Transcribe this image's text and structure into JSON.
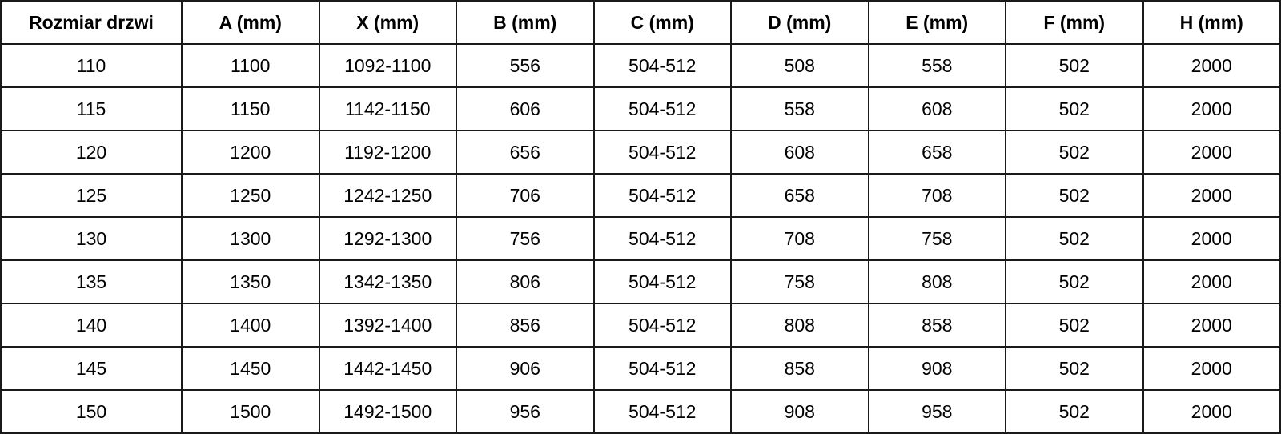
{
  "table": {
    "headers": [
      "Rozmiar drzwi",
      "A (mm)",
      "X (mm)",
      "B (mm)",
      "C (mm)",
      "D (mm)",
      "E (mm)",
      "F (mm)",
      "H (mm)"
    ],
    "rows": [
      [
        "110",
        "1100",
        "1092-1100",
        "556",
        "504-512",
        "508",
        "558",
        "502",
        "2000"
      ],
      [
        "115",
        "1150",
        "1142-1150",
        "606",
        "504-512",
        "558",
        "608",
        "502",
        "2000"
      ],
      [
        "120",
        "1200",
        "1192-1200",
        "656",
        "504-512",
        "608",
        "658",
        "502",
        "2000"
      ],
      [
        "125",
        "1250",
        "1242-1250",
        "706",
        "504-512",
        "658",
        "708",
        "502",
        "2000"
      ],
      [
        "130",
        "1300",
        "1292-1300",
        "756",
        "504-512",
        "708",
        "758",
        "502",
        "2000"
      ],
      [
        "135",
        "1350",
        "1342-1350",
        "806",
        "504-512",
        "758",
        "808",
        "502",
        "2000"
      ],
      [
        "140",
        "1400",
        "1392-1400",
        "856",
        "504-512",
        "808",
        "858",
        "502",
        "2000"
      ],
      [
        "145",
        "1450",
        "1442-1450",
        "906",
        "504-512",
        "858",
        "908",
        "502",
        "2000"
      ],
      [
        "150",
        "1500",
        "1492-1500",
        "956",
        "504-512",
        "908",
        "958",
        "502",
        "2000"
      ]
    ]
  }
}
